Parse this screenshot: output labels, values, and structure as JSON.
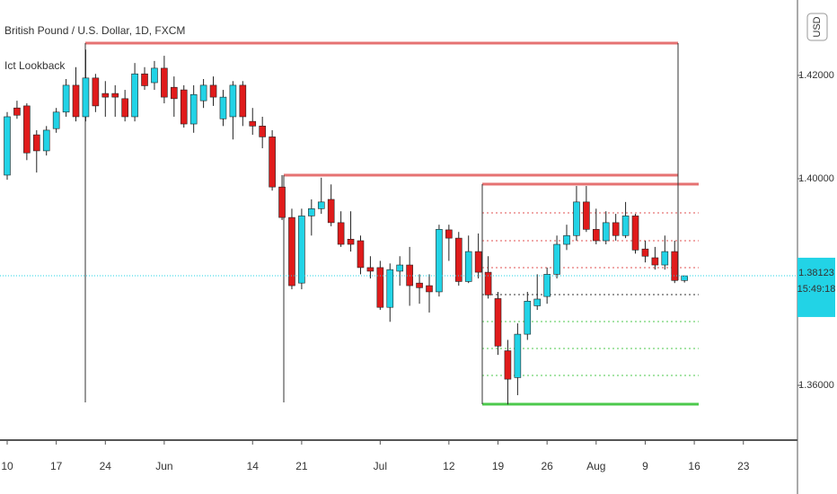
{
  "chart_data": {
    "type": "candlestick",
    "title": "British Pound / U.S. Dollar, 1D, FXCM",
    "indicator": "Ict Lookback",
    "currency_button": "USD",
    "categories": [
      "10",
      null,
      null,
      null,
      null,
      "17",
      null,
      null,
      null,
      null,
      "24",
      null,
      null,
      null,
      null,
      null,
      "Jun",
      null,
      null,
      null,
      null,
      null,
      null,
      null,
      null,
      "14",
      null,
      null,
      null,
      null,
      "21",
      null,
      null,
      null,
      null,
      null,
      null,
      null,
      "Jul",
      null,
      null,
      null,
      null,
      null,
      null,
      "12",
      null,
      null,
      null,
      null,
      "19",
      null,
      null,
      null,
      null,
      "26",
      null,
      null,
      null,
      null,
      "Aug",
      null,
      null,
      null,
      null,
      "9",
      null,
      null,
      null,
      null,
      "16",
      null,
      null,
      null,
      null,
      "23",
      null,
      null,
      null,
      null
    ],
    "open": [
      1.4007,
      1.4137,
      1.4141,
      1.4085,
      1.4054,
      1.4097,
      1.4129,
      1.4181,
      1.412,
      1.4195,
      1.4165,
      1.4165,
      1.4155,
      1.412,
      1.4203,
      1.4186,
      1.4214,
      1.4177,
      1.4172,
      1.4106,
      1.4151,
      1.4181,
      1.4116,
      1.412,
      1.4181,
      1.4111,
      1.4102,
      1.4081,
      1.3984,
      1.3925,
      1.3798,
      1.3928,
      1.3942,
      1.396,
      1.3915,
      1.3883,
      1.388,
      1.3828,
      1.3828,
      1.3751,
      1.3821,
      1.3833,
      1.3798,
      1.3793,
      1.3781,
      1.3901,
      1.3885,
      1.3801,
      1.3859,
      1.3819,
      1.3768,
      1.3667,
      1.3615,
      1.3699,
      1.3754,
      1.3772,
      1.3815,
      1.3873,
      1.389,
      1.3955,
      1.3902,
      1.388,
      1.3915,
      1.389,
      1.3928,
      1.3864,
      1.3847,
      1.3833,
      1.3859,
      1.3803,
      null,
      null,
      null,
      null,
      null,
      null,
      null,
      null,
      null,
      null
    ],
    "high": [
      1.4129,
      1.4151,
      1.4146,
      1.4094,
      1.4102,
      1.4137,
      1.4193,
      1.4216,
      1.425,
      1.4203,
      1.4189,
      1.4181,
      1.4172,
      1.4224,
      1.4216,
      1.4228,
      1.4238,
      1.4198,
      1.4181,
      1.4181,
      1.4193,
      1.4198,
      1.4172,
      1.4189,
      1.4189,
      1.4137,
      1.412,
      1.4094,
      1.4007,
      1.3942,
      1.3942,
      1.396,
      1.4002,
      1.3989,
      1.3937,
      1.3937,
      1.389,
      1.385,
      1.3841,
      1.3836,
      1.385,
      1.3868,
      1.3815,
      1.3815,
      1.3911,
      1.3911,
      1.3897,
      1.389,
      1.3894,
      1.385,
      1.3781,
      1.3688,
      1.372,
      1.3781,
      1.3815,
      1.3828,
      1.389,
      1.3911,
      1.3986,
      1.3986,
      1.3942,
      1.3937,
      1.3932,
      1.3955,
      1.3932,
      1.388,
      1.3868,
      1.389,
      1.388,
      1.3813,
      null,
      null,
      null,
      null,
      null,
      null,
      null,
      null,
      null,
      null
    ],
    "low": [
      1.3998,
      1.4116,
      1.4036,
      1.4012,
      1.4045,
      1.4089,
      1.412,
      1.4111,
      1.4111,
      1.4129,
      1.412,
      1.412,
      1.4111,
      1.4111,
      1.4172,
      1.4172,
      1.4146,
      1.412,
      1.4099,
      1.4089,
      1.4137,
      1.4141,
      1.4102,
      1.4076,
      1.4102,
      1.4085,
      1.4059,
      1.3977,
      1.392,
      1.3786,
      1.3786,
      1.389,
      1.3932,
      1.3908,
      1.3868,
      1.3859,
      1.3815,
      1.3807,
      1.3746,
      1.3723,
      1.3793,
      1.3754,
      1.3758,
      1.3741,
      1.3772,
      1.3841,
      1.3793,
      1.3798,
      1.3807,
      1.3768,
      1.3659,
      1.3563,
      1.3581,
      1.3688,
      1.3746,
      1.3758,
      1.3807,
      1.3862,
      1.388,
      1.3897,
      1.3873,
      1.3873,
      1.388,
      1.3885,
      1.3855,
      1.3838,
      1.3824,
      1.3824,
      1.3798,
      1.3799,
      null,
      null,
      null,
      null,
      null,
      null,
      null,
      null,
      null,
      null
    ],
    "close": [
      1.412,
      1.4123,
      1.405,
      1.4054,
      1.4094,
      1.4129,
      1.4181,
      1.412,
      1.4195,
      1.4141,
      1.4158,
      1.4158,
      1.412,
      1.4203,
      1.418,
      1.4214,
      1.4158,
      1.4155,
      1.4106,
      1.4163,
      1.4181,
      1.4158,
      1.4158,
      1.4181,
      1.412,
      1.4102,
      1.4081,
      1.3984,
      1.3925,
      1.3793,
      1.3928,
      1.3942,
      1.3955,
      1.3915,
      1.3873,
      1.3873,
      1.3828,
      1.3821,
      1.3751,
      1.3824,
      1.3833,
      1.3793,
      1.3789,
      1.3781,
      1.3902,
      1.3885,
      1.3801,
      1.3859,
      1.3819,
      1.3775,
      1.3676,
      1.3612,
      1.3699,
      1.3763,
      1.3767,
      1.3815,
      1.3873,
      1.389,
      1.3955,
      1.3902,
      1.388,
      1.3915,
      1.389,
      1.3928,
      1.3862,
      1.385,
      1.3833,
      1.3859,
      1.3803,
      1.3812,
      null,
      null,
      null,
      null,
      null,
      null,
      null,
      null,
      null,
      null
    ],
    "up_color": "#22d3e6",
    "down_color": "#e01b1b",
    "ylim": [
      1.3494,
      1.4346
    ],
    "yticks": [
      {
        "value": 1.36,
        "label": "1.36000"
      },
      {
        "value": 1.4,
        "label": "1.40000"
      },
      {
        "value": 1.42,
        "label": "1.42000"
      }
    ],
    "last_price": 1.38123,
    "countdown": "15:49:18"
  }
}
